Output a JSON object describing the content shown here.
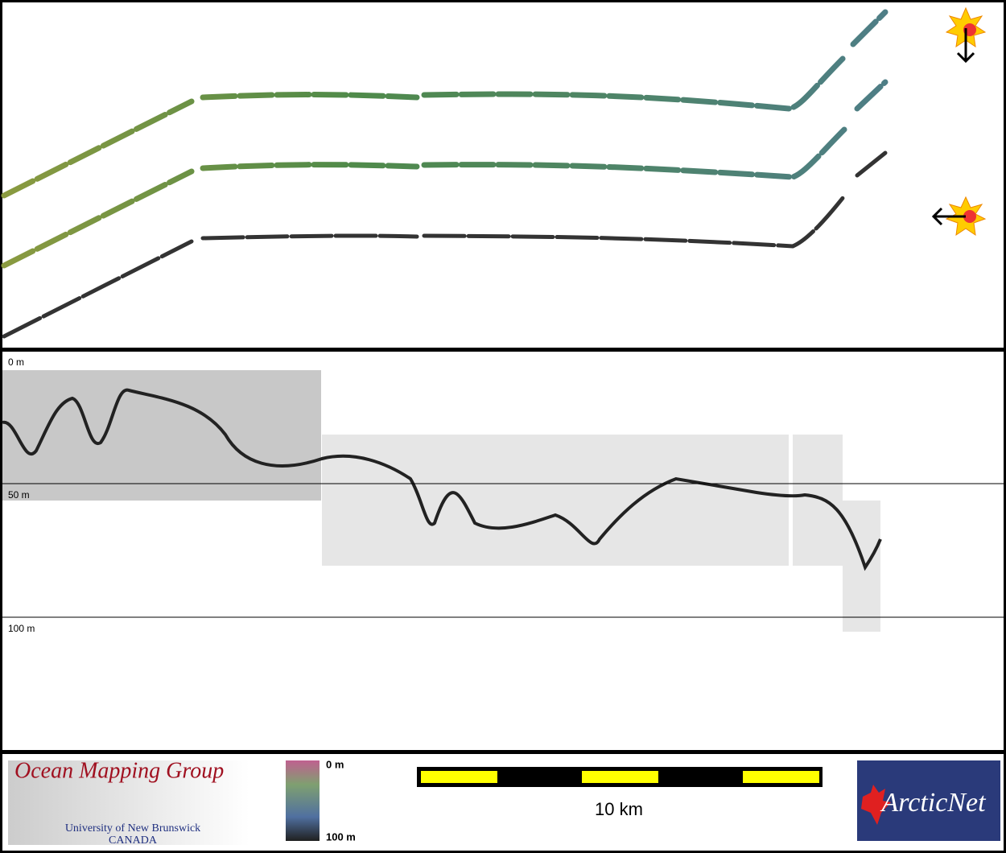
{
  "profile": {
    "depth_labels": [
      "0 m",
      "50 m",
      "100 m"
    ]
  },
  "legend": {
    "color_bar": {
      "top": "0 m",
      "bottom": "100 m"
    },
    "scale_bar": "10 km"
  },
  "logos": {
    "omg": {
      "title": "Ocean Mapping Group",
      "line1": "University of New Brunswick",
      "line2": "CANADA"
    },
    "arcticnet": "ArcticNet"
  }
}
